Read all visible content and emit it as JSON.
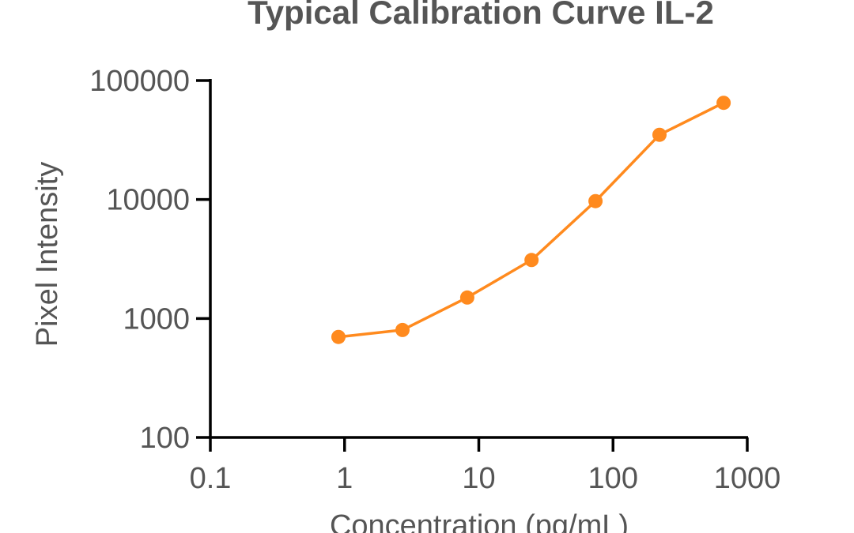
{
  "chart_data": {
    "type": "line",
    "title": "Typical Calibration Curve IL-2",
    "xlabel": "Concentration (pg/mL)",
    "ylabel": "Pixel Intensity",
    "x_scale": "log",
    "y_scale": "log",
    "xlim": [
      0.1,
      1000
    ],
    "ylim": [
      100,
      100000
    ],
    "x_ticks": [
      0.1,
      1,
      10,
      100,
      1000
    ],
    "x_tick_labels": [
      "0.1",
      "1",
      "10",
      "100",
      "1000"
    ],
    "y_ticks": [
      100,
      1000,
      10000,
      100000
    ],
    "y_tick_labels": [
      "100",
      "1000",
      "10000",
      "100000"
    ],
    "grid": false,
    "series": [
      {
        "color": "#FF8A1E",
        "x": [
          0.9,
          2.7,
          8.2,
          24.7,
          74,
          222,
          667
        ],
        "y": [
          700,
          800,
          1500,
          3100,
          9700,
          35000,
          65000
        ]
      }
    ]
  }
}
